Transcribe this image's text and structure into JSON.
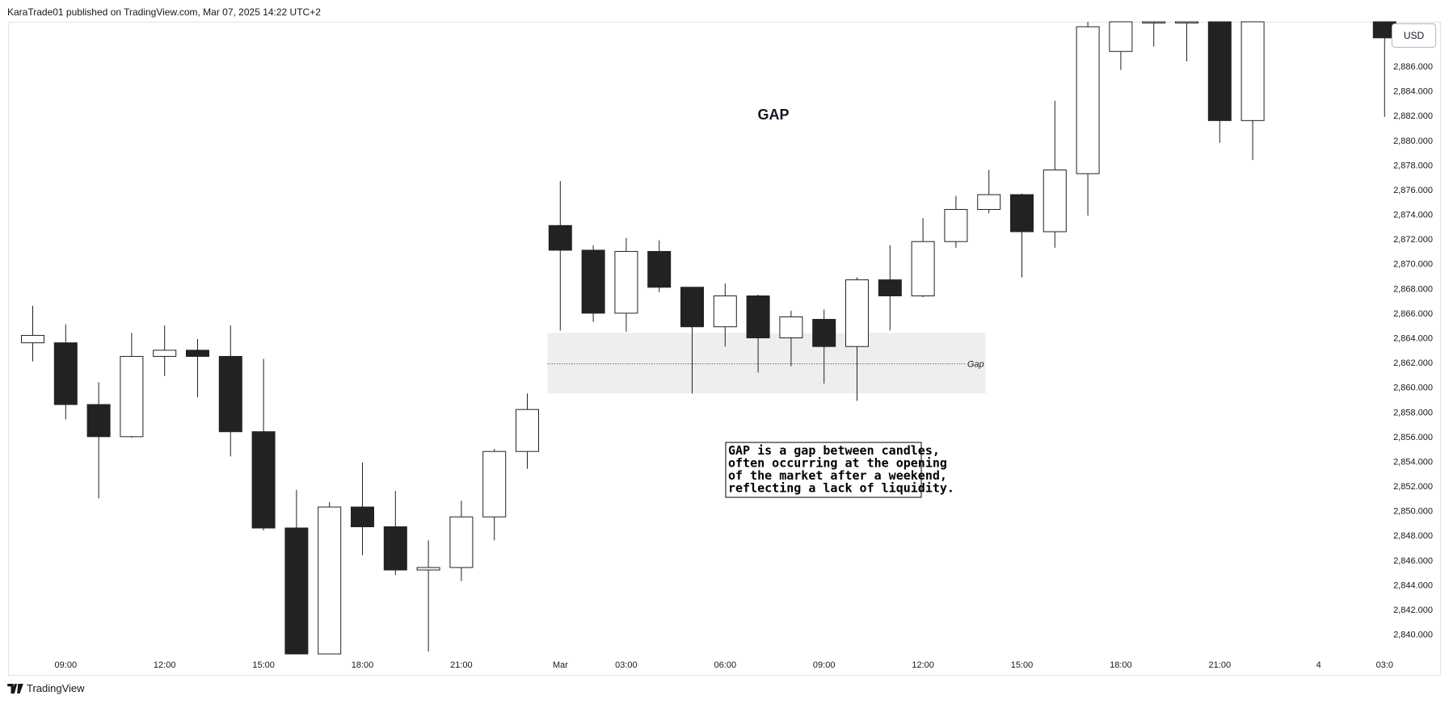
{
  "header": {
    "published": "KaraTrade01 published on TradingView.com, Mar 07, 2025 14:22 UTC+2"
  },
  "brand": {
    "name": "TradingView"
  },
  "colors": {
    "bearish": "#222222",
    "bullish": "#ffffff",
    "wick": "#222222",
    "gap_zone": "#eeeeee",
    "grid": "#e0e3eb"
  },
  "chart_data": {
    "type": "candlestick",
    "title": "GAP",
    "currency": "USD",
    "ylim": [
      2838.4,
      2889.6
    ],
    "y_ticks": [
      "2,886.000",
      "2,884.000",
      "2,882.000",
      "2,880.000",
      "2,878.000",
      "2,876.000",
      "2,874.000",
      "2,872.000",
      "2,870.000",
      "2,868.000",
      "2,866.000",
      "2,864.000",
      "2,862.000",
      "2,860.000",
      "2,858.000",
      "2,856.000",
      "2,854.000",
      "2,852.000",
      "2,850.000",
      "2,848.000",
      "2,846.000",
      "2,844.000",
      "2,842.000",
      "2,840.000"
    ],
    "y_tick_values": [
      2886,
      2884,
      2882,
      2880,
      2878,
      2876,
      2874,
      2872,
      2870,
      2868,
      2866,
      2864,
      2862,
      2860,
      2858,
      2856,
      2854,
      2852,
      2850,
      2848,
      2846,
      2844,
      2842,
      2840
    ],
    "x_ticks": [
      {
        "label": "09:00",
        "index": 1
      },
      {
        "label": "12:00",
        "index": 4
      },
      {
        "label": "15:00",
        "index": 7
      },
      {
        "label": "18:00",
        "index": 10
      },
      {
        "label": "21:00",
        "index": 13
      },
      {
        "label": "Mar",
        "index": 16
      },
      {
        "label": "03:00",
        "index": 18
      },
      {
        "label": "06:00",
        "index": 21
      },
      {
        "label": "09:00",
        "index": 24
      },
      {
        "label": "12:00",
        "index": 27
      },
      {
        "label": "15:00",
        "index": 30
      },
      {
        "label": "18:00",
        "index": 33
      },
      {
        "label": "21:00",
        "index": 36
      },
      {
        "label": "4",
        "index": 39
      },
      {
        "label": "03:0",
        "index": 41
      }
    ],
    "candles": [
      {
        "o": 2863.6,
        "h": 2866.6,
        "l": 2862.1,
        "c": 2864.2
      },
      {
        "o": 2863.6,
        "h": 2865.1,
        "l": 2857.4,
        "c": 2858.6
      },
      {
        "o": 2858.6,
        "h": 2860.4,
        "l": 2851.0,
        "c": 2856.0
      },
      {
        "o": 2856.0,
        "h": 2864.4,
        "l": 2855.9,
        "c": 2862.5
      },
      {
        "o": 2862.5,
        "h": 2865.0,
        "l": 2860.9,
        "c": 2863.0
      },
      {
        "o": 2863.0,
        "h": 2863.9,
        "l": 2859.2,
        "c": 2862.5
      },
      {
        "o": 2862.5,
        "h": 2865.0,
        "l": 2854.4,
        "c": 2856.4
      },
      {
        "o": 2856.4,
        "h": 2862.3,
        "l": 2848.4,
        "c": 2848.6
      },
      {
        "o": 2848.6,
        "h": 2851.7,
        "l": 2838.4,
        "c": 2838.4
      },
      {
        "o": 2838.4,
        "h": 2850.7,
        "l": 2838.4,
        "c": 2850.3
      },
      {
        "o": 2850.3,
        "h": 2853.9,
        "l": 2846.4,
        "c": 2848.7
      },
      {
        "o": 2848.7,
        "h": 2851.6,
        "l": 2844.8,
        "c": 2845.2
      },
      {
        "o": 2845.2,
        "h": 2847.6,
        "l": 2838.6,
        "c": 2845.4
      },
      {
        "o": 2845.4,
        "h": 2850.8,
        "l": 2844.3,
        "c": 2849.5
      },
      {
        "o": 2849.5,
        "h": 2855.0,
        "l": 2847.6,
        "c": 2854.8
      },
      {
        "o": 2854.8,
        "h": 2859.5,
        "l": 2853.4,
        "c": 2858.2
      },
      {
        "o": 2873.1,
        "h": 2876.7,
        "l": 2864.6,
        "c": 2871.1
      },
      {
        "o": 2871.1,
        "h": 2871.5,
        "l": 2865.3,
        "c": 2866.0
      },
      {
        "o": 2866.0,
        "h": 2872.1,
        "l": 2864.5,
        "c": 2871.0
      },
      {
        "o": 2871.0,
        "h": 2871.9,
        "l": 2867.7,
        "c": 2868.1
      },
      {
        "o": 2868.1,
        "h": 2868.1,
        "l": 2859.5,
        "c": 2864.9
      },
      {
        "o": 2864.9,
        "h": 2868.4,
        "l": 2863.3,
        "c": 2867.4
      },
      {
        "o": 2867.4,
        "h": 2867.5,
        "l": 2861.2,
        "c": 2864.0
      },
      {
        "o": 2864.0,
        "h": 2866.2,
        "l": 2861.7,
        "c": 2865.7
      },
      {
        "o": 2865.5,
        "h": 2866.3,
        "l": 2860.3,
        "c": 2863.3
      },
      {
        "o": 2863.3,
        "h": 2868.9,
        "l": 2858.9,
        "c": 2868.7
      },
      {
        "o": 2868.7,
        "h": 2871.5,
        "l": 2864.6,
        "c": 2867.4
      },
      {
        "o": 2867.4,
        "h": 2873.7,
        "l": 2867.3,
        "c": 2871.8
      },
      {
        "o": 2871.8,
        "h": 2875.5,
        "l": 2871.3,
        "c": 2874.4
      },
      {
        "o": 2874.4,
        "h": 2877.6,
        "l": 2874.1,
        "c": 2875.6
      },
      {
        "o": 2875.6,
        "h": 2875.7,
        "l": 2868.9,
        "c": 2872.6
      },
      {
        "o": 2872.6,
        "h": 2883.2,
        "l": 2871.3,
        "c": 2877.6
      },
      {
        "o": 2877.3,
        "h": 2889.6,
        "l": 2873.9,
        "c": 2889.2
      },
      {
        "o": 2887.2,
        "h": 2889.6,
        "l": 2885.7,
        "c": 2889.6
      },
      {
        "o": 2889.6,
        "h": 2889.6,
        "l": 2887.6,
        "c": 2889.6
      },
      {
        "o": 2889.6,
        "h": 2889.6,
        "l": 2886.4,
        "c": 2889.6
      },
      {
        "o": 2889.6,
        "h": 2889.6,
        "l": 2879.8,
        "c": 2881.6
      },
      {
        "o": 2881.6,
        "h": 2889.6,
        "l": 2878.4,
        "c": 2889.6
      },
      {
        "o": 2889.6,
        "h": 2889.6,
        "l": 2881.9,
        "c": 2888.3
      }
    ],
    "candle_x_positions": [
      0,
      1,
      2,
      3,
      4,
      5,
      6,
      7,
      8,
      9,
      10,
      11,
      12,
      13,
      14,
      15,
      16,
      17,
      18,
      19,
      20,
      21,
      22,
      23,
      24,
      25,
      26,
      27,
      28,
      29,
      30,
      31,
      32,
      33,
      34,
      35,
      36,
      37,
      41
    ],
    "gap_zone": {
      "from": 2859.5,
      "to": 2864.4,
      "start_index": 16,
      "end_index": 28.9,
      "mid": 2861.9,
      "label": "Gap"
    },
    "annotation": {
      "lines": [
        "GAP is a gap between candles,",
        "often occurring at the opening",
        "of the market after a weekend,",
        "reflecting a lack of liquidity."
      ]
    }
  }
}
